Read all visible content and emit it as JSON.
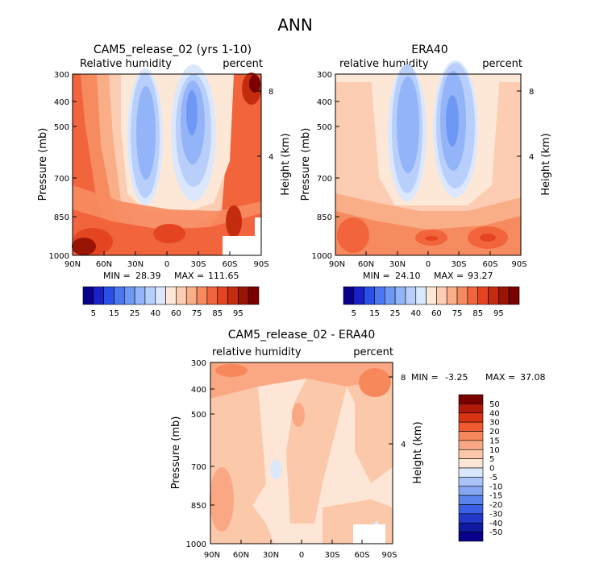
{
  "figure": {
    "title": "ANN"
  },
  "chart_data": [
    {
      "type": "heatmap",
      "title": "CAM5_release_02 (yrs 1-10)",
      "left_string": "Relative humidity",
      "right_string": "percent",
      "ylabel": "Pressure (mb)",
      "ylabel_right": "Height (km)",
      "x_ticks": [
        "90N",
        "60N",
        "30N",
        "0",
        "30S",
        "60S",
        "90S"
      ],
      "y_ticks": [
        "300",
        "400",
        "500",
        "700",
        "850",
        "1000"
      ],
      "height_ticks": [
        "8",
        "4"
      ],
      "ylim_mb": [
        1000,
        300
      ],
      "min_label": "MIN =",
      "min_value": "28.39",
      "max_label": "MAX =",
      "max_value": "111.65",
      "levels": [
        "5",
        "15",
        "25",
        "40",
        "60",
        "75",
        "85",
        "95"
      ],
      "colors": [
        "#08008a",
        "#1a20c8",
        "#2b50e8",
        "#4a78f0",
        "#6f98f5",
        "#93b4f8",
        "#b8cffb",
        "#dbe7fd",
        "#fde8d8",
        "#fccdb2",
        "#faae88",
        "#f78b60",
        "#f2643c",
        "#e44420",
        "#c42c10",
        "#9a1404",
        "#7a0000"
      ]
    },
    {
      "type": "heatmap",
      "title": "ERA40",
      "left_string": "relative humidity",
      "right_string": "percent",
      "ylabel": "Pressure (mb)",
      "ylabel_right": "Height (km)",
      "x_ticks": [
        "90N",
        "60N",
        "30N",
        "0",
        "30S",
        "60S",
        "90S"
      ],
      "y_ticks": [
        "300",
        "400",
        "500",
        "700",
        "850",
        "1000"
      ],
      "height_ticks": [
        "8",
        "4"
      ],
      "ylim_mb": [
        1000,
        300
      ],
      "min_label": "MIN =",
      "min_value": "24.10",
      "max_label": "MAX =",
      "max_value": "93.27",
      "levels": [
        "5",
        "15",
        "25",
        "40",
        "60",
        "75",
        "85",
        "95"
      ],
      "colors": [
        "#08008a",
        "#1a20c8",
        "#2b50e8",
        "#4a78f0",
        "#6f98f5",
        "#93b4f8",
        "#b8cffb",
        "#dbe7fd",
        "#fde8d8",
        "#fccdb2",
        "#faae88",
        "#f78b60",
        "#f2643c",
        "#e44420",
        "#c42c10",
        "#9a1404",
        "#7a0000"
      ]
    },
    {
      "type": "heatmap",
      "title": "CAM5_release_02 - ERA40",
      "left_string": "relative humidity",
      "right_string": "percent",
      "ylabel": "Pressure (mb)",
      "ylabel_right": "Height (km)",
      "x_ticks": [
        "90N",
        "60N",
        "30N",
        "0",
        "30S",
        "60S",
        "90S"
      ],
      "y_ticks": [
        "300",
        "400",
        "500",
        "700",
        "850",
        "1000"
      ],
      "height_ticks": [
        "8",
        "4"
      ],
      "ylim_mb": [
        1000,
        300
      ],
      "min_label": "MIN =",
      "min_value": "-3.25",
      "max_label": "MAX =",
      "max_value": "37.08",
      "levels": [
        "50",
        "40",
        "30",
        "20",
        "15",
        "10",
        "5",
        "0",
        "-5",
        "-10",
        "-15",
        "-20",
        "-30",
        "-40",
        "-50"
      ],
      "colors": [
        "#7a0000",
        "#b01a08",
        "#d83414",
        "#f05a30",
        "#f7885c",
        "#faa884",
        "#fcc8aa",
        "#fde6d6",
        "#dbe7fd",
        "#aac4f8",
        "#84a6f3",
        "#5a84ec",
        "#3a5ee4",
        "#2238c8",
        "#101aa0",
        "#08008a"
      ]
    }
  ]
}
